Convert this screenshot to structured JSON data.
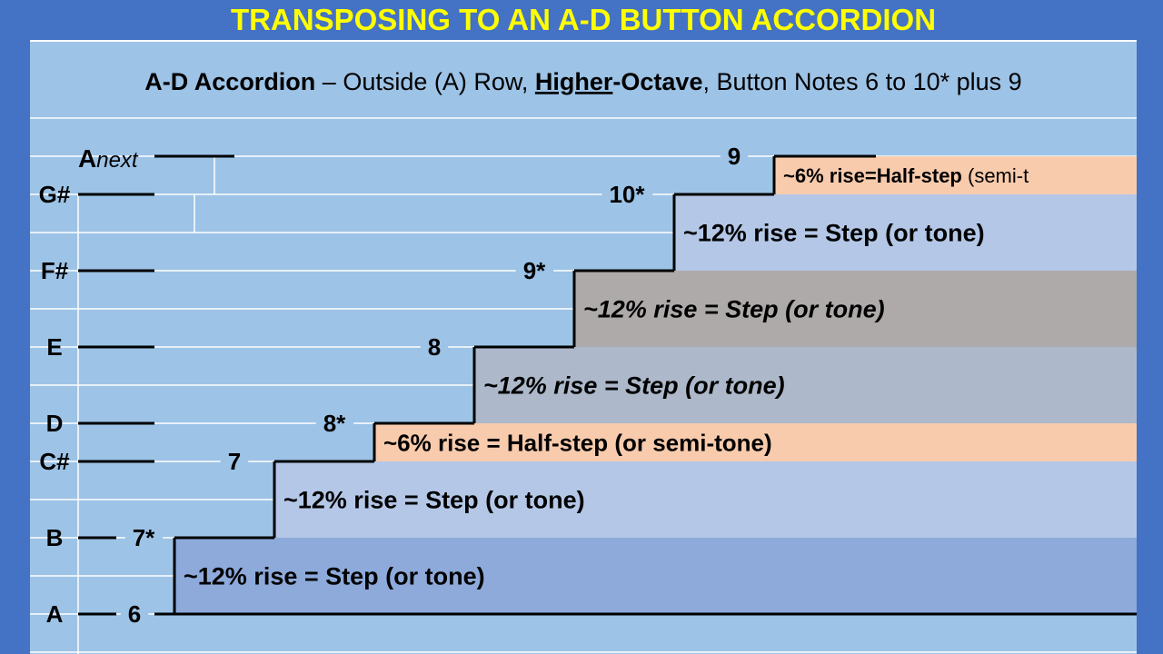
{
  "title": "TRANSPOSING TO AN  A-D  BUTTON ACCORDION",
  "subtitle": {
    "bold_lead": "A-D Accordion",
    "part1": " – Outside (A) Row, ",
    "underlined": "Higher",
    "bold_mid": "-Octave",
    "part2": ", Button Notes 6 to 10* plus 9"
  },
  "colors": {
    "frame": "#4472c4",
    "panel": "#9dc3e6",
    "title_text": "#ffff00",
    "step_blue_dark": "#8eaadb",
    "step_blue_light": "#b4c7e7",
    "half_step_peach": "#f8cbad",
    "step_slate": "#adb9ca",
    "step_grey": "#aeaaaa"
  },
  "notes": [
    {
      "name": "A",
      "button": "6"
    },
    {
      "name": "B",
      "button": "7*"
    },
    {
      "name": "C#",
      "button": "7"
    },
    {
      "name": "D",
      "button": "8*"
    },
    {
      "name": "E",
      "button": "8"
    },
    {
      "name": "F#",
      "button": "9*"
    },
    {
      "name": "G#",
      "button": "10*"
    },
    {
      "name_bold": "A",
      "name_italic": "next",
      "button": "9"
    }
  ],
  "bands": [
    {
      "label": "~12% rise = Step  (or tone)",
      "kind": "step",
      "color": "#8eaadb",
      "italic": false
    },
    {
      "label": "~12% rise = Step  (or tone)",
      "kind": "step",
      "color": "#b4c7e7",
      "italic": false
    },
    {
      "label": "~6% rise = Half-step  (or semi-tone)",
      "kind": "half-step",
      "color": "#f8cbad",
      "italic": false
    },
    {
      "label": "~12% rise = Step  (or tone)",
      "kind": "step",
      "color": "#adb9ca",
      "italic": true
    },
    {
      "label": "~12% rise = Step  (or tone)",
      "kind": "step",
      "color": "#aeaaaa",
      "italic": true
    },
    {
      "label": "~12% rise = Step  (or tone)",
      "kind": "step",
      "color": "#b4c7e7",
      "italic": false
    },
    {
      "label": "~6% rise=Half-step",
      "label_suffix": " (semi-t",
      "kind": "half-step",
      "color": "#f8cbad",
      "italic": false
    }
  ]
}
